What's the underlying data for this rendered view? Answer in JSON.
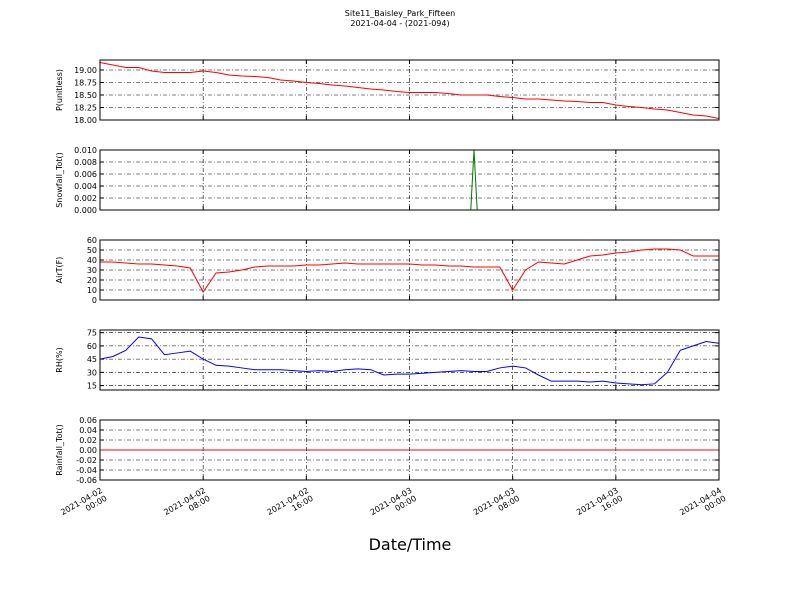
{
  "title": "Site11_Baisley_Park_Fifteen",
  "subtitle": "2021-04-04 - (2021-094)",
  "chart_data": [
    {
      "type": "line",
      "ylabel": "P(unitless)",
      "color": "#ff0000",
      "xlim": [
        "2021-04-02 00:00",
        "2021-04-04 00:00"
      ],
      "xticks": [
        "2021-04-02 00:00",
        "2021-04-02 08:00",
        "2021-04-02 16:00",
        "2021-04-03 00:00",
        "2021-04-03 08:00",
        "2021-04-03 16:00",
        "2021-04-04 00:00"
      ],
      "ylim": [
        18.0,
        19.2
      ],
      "yticks": [
        {
          "value": 18,
          "label": "18.00"
        },
        18.25,
        {
          "value": 18.5,
          "label": "18.50"
        },
        18.75,
        {
          "value": 19,
          "label": "19.00"
        }
      ],
      "grid": true,
      "x": [
        "2021-04-02 00:00",
        "2021-04-02 01:00",
        "2021-04-02 02:00",
        "2021-04-02 03:00",
        "2021-04-02 04:00",
        "2021-04-02 05:00",
        "2021-04-02 06:00",
        "2021-04-02 07:00",
        "2021-04-02 08:00",
        "2021-04-02 09:00",
        "2021-04-02 10:00",
        "2021-04-02 11:00",
        "2021-04-02 12:00",
        "2021-04-02 13:00",
        "2021-04-02 14:00",
        "2021-04-02 15:00",
        "2021-04-02 16:00",
        "2021-04-02 17:00",
        "2021-04-02 18:00",
        "2021-04-02 19:00",
        "2021-04-02 20:00",
        "2021-04-02 21:00",
        "2021-04-02 22:00",
        "2021-04-02 23:00",
        "2021-04-03 00:00",
        "2021-04-03 01:00",
        "2021-04-03 02:00",
        "2021-04-03 03:00",
        "2021-04-03 04:00",
        "2021-04-03 05:00",
        "2021-04-03 06:00",
        "2021-04-03 07:00",
        "2021-04-03 08:00",
        "2021-04-03 09:00",
        "2021-04-03 10:00",
        "2021-04-03 11:00",
        "2021-04-03 12:00",
        "2021-04-03 13:00",
        "2021-04-03 14:00",
        "2021-04-03 15:00",
        "2021-04-03 16:00",
        "2021-04-03 17:00",
        "2021-04-03 18:00",
        "2021-04-03 19:00",
        "2021-04-03 20:00",
        "2021-04-03 21:00",
        "2021-04-03 22:00",
        "2021-04-03 23:00",
        "2021-04-04 00:00"
      ],
      "values": [
        19.15,
        19.1,
        19.05,
        19.05,
        18.98,
        18.95,
        18.95,
        18.95,
        18.98,
        18.95,
        18.9,
        18.88,
        18.87,
        18.85,
        18.8,
        18.78,
        18.75,
        18.73,
        18.7,
        18.68,
        18.65,
        18.62,
        18.6,
        18.57,
        18.55,
        18.55,
        18.55,
        18.53,
        18.5,
        18.5,
        18.5,
        18.47,
        18.45,
        18.42,
        18.42,
        18.4,
        18.38,
        18.37,
        18.35,
        18.35,
        18.3,
        18.27,
        18.25,
        18.22,
        18.2,
        18.15,
        18.1,
        18.08,
        18.03
      ]
    },
    {
      "type": "line",
      "ylabel": "Snowfall_Tot()",
      "color": "#007700",
      "xlim": [
        "2021-04-02 00:00",
        "2021-04-04 00:00"
      ],
      "xticks": [
        "2021-04-02 00:00",
        "2021-04-02 08:00",
        "2021-04-02 16:00",
        "2021-04-03 00:00",
        "2021-04-03 08:00",
        "2021-04-03 16:00",
        "2021-04-04 00:00"
      ],
      "ylim": [
        0,
        0.01
      ],
      "yticks": [
        {
          "value": 0,
          "label": "0.000"
        },
        0.002,
        0.004,
        0.006,
        0.008,
        {
          "value": 0.01,
          "label": "0.010"
        }
      ],
      "grid": true,
      "x": [
        "2021-04-02 00:00",
        "2021-04-03 04:45",
        "2021-04-03 05:00",
        "2021-04-03 05:15",
        "2021-04-04 00:00"
      ],
      "values": [
        0,
        0,
        0.01,
        0,
        0
      ]
    },
    {
      "type": "line",
      "ylabel": "AirT(F)",
      "color": "#ff0000",
      "xlim": [
        "2021-04-02 00:00",
        "2021-04-04 00:00"
      ],
      "xticks": [
        "2021-04-02 00:00",
        "2021-04-02 08:00",
        "2021-04-02 16:00",
        "2021-04-03 00:00",
        "2021-04-03 08:00",
        "2021-04-03 16:00",
        "2021-04-04 00:00"
      ],
      "ylim": [
        0,
        60
      ],
      "yticks": [
        0,
        10,
        20,
        30,
        40,
        50,
        60
      ],
      "grid": true,
      "x": [
        "2021-04-02 00:00",
        "2021-04-02 01:00",
        "2021-04-02 02:00",
        "2021-04-02 03:00",
        "2021-04-02 04:00",
        "2021-04-02 05:00",
        "2021-04-02 06:00",
        "2021-04-02 07:00",
        "2021-04-02 08:00",
        "2021-04-02 09:00",
        "2021-04-02 10:00",
        "2021-04-02 11:00",
        "2021-04-02 12:00",
        "2021-04-02 13:00",
        "2021-04-02 14:00",
        "2021-04-02 15:00",
        "2021-04-02 16:00",
        "2021-04-02 17:00",
        "2021-04-02 18:00",
        "2021-04-02 19:00",
        "2021-04-02 20:00",
        "2021-04-02 21:00",
        "2021-04-02 22:00",
        "2021-04-02 23:00",
        "2021-04-03 00:00",
        "2021-04-03 01:00",
        "2021-04-03 02:00",
        "2021-04-03 03:00",
        "2021-04-03 04:00",
        "2021-04-03 05:00",
        "2021-04-03 06:00",
        "2021-04-03 07:00",
        "2021-04-03 08:00",
        "2021-04-03 09:00",
        "2021-04-03 10:00",
        "2021-04-03 11:00",
        "2021-04-03 12:00",
        "2021-04-03 13:00",
        "2021-04-03 14:00",
        "2021-04-03 15:00",
        "2021-04-03 16:00",
        "2021-04-03 17:00",
        "2021-04-03 18:00",
        "2021-04-03 19:00",
        "2021-04-03 20:00",
        "2021-04-03 21:00",
        "2021-04-03 22:00",
        "2021-04-03 23:00",
        "2021-04-04 00:00"
      ],
      "values": [
        38,
        38,
        37,
        36,
        36,
        35,
        34,
        32,
        8,
        27,
        28,
        30,
        33,
        34,
        34,
        34,
        35,
        35,
        36,
        37,
        36,
        36,
        36,
        36,
        36,
        35,
        35,
        34,
        34,
        33,
        33,
        33,
        10,
        30,
        38,
        37,
        36,
        40,
        44,
        45,
        47,
        48,
        50,
        51,
        51,
        50,
        44,
        44,
        44
      ]
    },
    {
      "type": "line",
      "ylabel": "RH(%)",
      "color": "#0000ff",
      "xlim": [
        "2021-04-02 00:00",
        "2021-04-04 00:00"
      ],
      "xticks": [
        "2021-04-02 00:00",
        "2021-04-02 08:00",
        "2021-04-02 16:00",
        "2021-04-03 00:00",
        "2021-04-03 08:00",
        "2021-04-03 16:00",
        "2021-04-04 00:00"
      ],
      "ylim": [
        10,
        78
      ],
      "yticks": [
        15,
        30,
        45,
        60,
        75
      ],
      "grid": true,
      "x": [
        "2021-04-02 00:00",
        "2021-04-02 01:00",
        "2021-04-02 02:00",
        "2021-04-02 03:00",
        "2021-04-02 04:00",
        "2021-04-02 05:00",
        "2021-04-02 06:00",
        "2021-04-02 07:00",
        "2021-04-02 08:00",
        "2021-04-02 09:00",
        "2021-04-02 10:00",
        "2021-04-02 11:00",
        "2021-04-02 12:00",
        "2021-04-02 13:00",
        "2021-04-02 14:00",
        "2021-04-02 15:00",
        "2021-04-02 16:00",
        "2021-04-02 17:00",
        "2021-04-02 18:00",
        "2021-04-02 19:00",
        "2021-04-02 20:00",
        "2021-04-02 21:00",
        "2021-04-02 22:00",
        "2021-04-02 23:00",
        "2021-04-03 00:00",
        "2021-04-03 01:00",
        "2021-04-03 02:00",
        "2021-04-03 03:00",
        "2021-04-03 04:00",
        "2021-04-03 05:00",
        "2021-04-03 06:00",
        "2021-04-03 07:00",
        "2021-04-03 08:00",
        "2021-04-03 09:00",
        "2021-04-03 10:00",
        "2021-04-03 11:00",
        "2021-04-03 12:00",
        "2021-04-03 13:00",
        "2021-04-03 14:00",
        "2021-04-03 15:00",
        "2021-04-03 16:00",
        "2021-04-03 17:00",
        "2021-04-03 18:00",
        "2021-04-03 19:00",
        "2021-04-03 20:00",
        "2021-04-03 21:00",
        "2021-04-03 22:00",
        "2021-04-03 23:00",
        "2021-04-04 00:00"
      ],
      "values": [
        45,
        48,
        55,
        70,
        68,
        50,
        52,
        54,
        45,
        38,
        37,
        35,
        33,
        33,
        33,
        32,
        31,
        32,
        31,
        33,
        34,
        33,
        27,
        28,
        28,
        29,
        30,
        31,
        32,
        31,
        31,
        35,
        37,
        35,
        27,
        20,
        20,
        20,
        19,
        20,
        18,
        17,
        16,
        17,
        30,
        55,
        60,
        65,
        63
      ]
    },
    {
      "type": "line",
      "ylabel": "Rainfall_Tot()",
      "xlabel": "Date/Time",
      "color": "#ff0000",
      "xlim": [
        "2021-04-02 00:00",
        "2021-04-04 00:00"
      ],
      "xticks": [
        "2021-04-02 00:00",
        "2021-04-02 08:00",
        "2021-04-02 16:00",
        "2021-04-03 00:00",
        "2021-04-03 08:00",
        "2021-04-03 16:00",
        "2021-04-04 00:00"
      ],
      "ylim": [
        -0.06,
        0.06
      ],
      "yticks": [
        -0.06,
        -0.04,
        -0.02,
        {
          "value": 0,
          "label": "0.00"
        },
        0.02,
        0.04,
        0.06
      ],
      "grid": true,
      "x": [
        "2021-04-02 00:00",
        "2021-04-04 00:00"
      ],
      "values": [
        0,
        0
      ]
    }
  ]
}
